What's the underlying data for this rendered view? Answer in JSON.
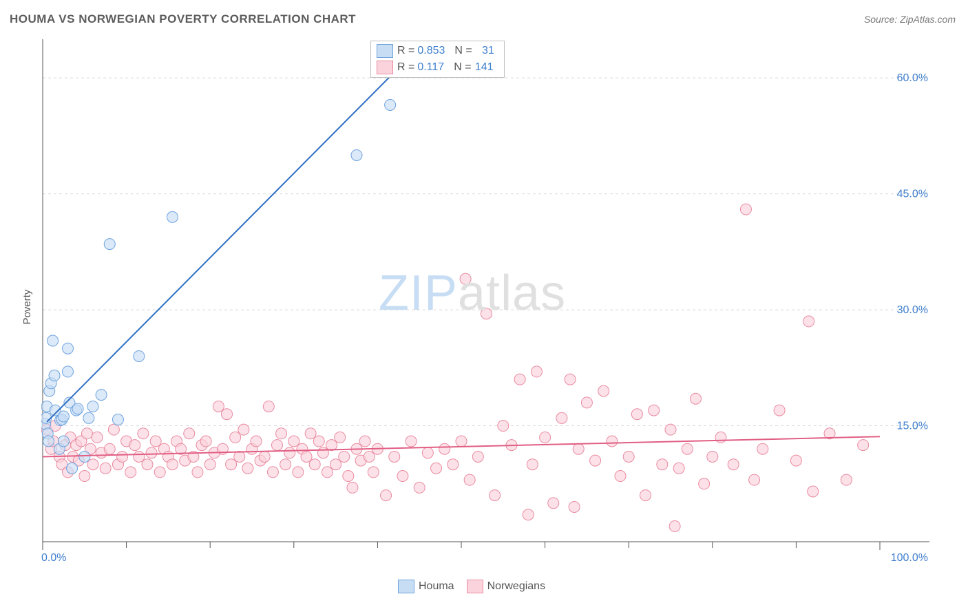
{
  "header": {
    "title": "HOUMA VS NORWEGIAN POVERTY CORRELATION CHART",
    "source": "Source: ZipAtlas.com"
  },
  "y_axis": {
    "label": "Poverty"
  },
  "watermark": {
    "zip": "ZIP",
    "atlas": "atlas"
  },
  "chart": {
    "type": "scatter",
    "xlim": [
      0,
      100
    ],
    "ylim": [
      0,
      65
    ],
    "x_ticks_major": [
      0,
      100
    ],
    "x_ticks_minor": [
      10,
      20,
      30,
      40,
      50,
      60,
      70,
      80,
      90
    ],
    "x_tick_labels": {
      "0": "0.0%",
      "100": "100.0%"
    },
    "y_gridlines": [
      15,
      30,
      45,
      60
    ],
    "y_tick_labels": {
      "15": "15.0%",
      "30": "30.0%",
      "45": "45.0%",
      "60": "60.0%"
    },
    "background_color": "#ffffff",
    "grid_color": "#d8d8d8",
    "axis_color": "#555555",
    "marker_radius": 8,
    "series": [
      {
        "name": "Houma",
        "fill": "#c7ddf4",
        "stroke": "#6ea3de",
        "fill_opacity": 0.65,
        "trend": {
          "x1": 0.5,
          "y1": 15.5,
          "x2": 45,
          "y2": 64,
          "color": "#2f6fc3",
          "width": 2
        },
        "points": [
          [
            0.3,
            15.2
          ],
          [
            0.4,
            16.0
          ],
          [
            0.5,
            17.5
          ],
          [
            0.6,
            14.0
          ],
          [
            0.7,
            13.0
          ],
          [
            0.8,
            19.5
          ],
          [
            1.0,
            20.5
          ],
          [
            1.2,
            26.0
          ],
          [
            1.4,
            21.5
          ],
          [
            1.5,
            17.0
          ],
          [
            2.0,
            12.0
          ],
          [
            2.1,
            15.7
          ],
          [
            2.3,
            15.8
          ],
          [
            2.5,
            16.2
          ],
          [
            3.0,
            22.0
          ],
          [
            3.2,
            18.0
          ],
          [
            3.5,
            9.5
          ],
          [
            4.0,
            17.0
          ],
          [
            4.2,
            17.2
          ],
          [
            5.0,
            11.0
          ],
          [
            5.5,
            16.0
          ],
          [
            6.0,
            17.5
          ],
          [
            7.0,
            19.0
          ],
          [
            8.0,
            38.5
          ],
          [
            9.0,
            15.8
          ],
          [
            11.5,
            24.0
          ],
          [
            15.5,
            42.0
          ],
          [
            37.5,
            50.0
          ],
          [
            41.5,
            56.5
          ],
          [
            2.5,
            13.0
          ],
          [
            3.0,
            25.0
          ]
        ]
      },
      {
        "name": "Norwegians",
        "fill": "#fad3dc",
        "stroke": "#e98aa0",
        "fill_opacity": 0.65,
        "trend": {
          "x1": 0,
          "y1": 11.0,
          "x2": 100,
          "y2": 13.6,
          "color": "#e15e84",
          "width": 2
        },
        "points": [
          [
            0.5,
            14.5
          ],
          [
            1.0,
            12.0
          ],
          [
            1.3,
            13.0
          ],
          [
            1.5,
            15.0
          ],
          [
            2.0,
            11.0
          ],
          [
            2.3,
            10.0
          ],
          [
            2.7,
            12.5
          ],
          [
            3.0,
            9.0
          ],
          [
            3.3,
            13.5
          ],
          [
            3.6,
            11.0
          ],
          [
            4.0,
            12.5
          ],
          [
            4.3,
            10.5
          ],
          [
            4.6,
            13.0
          ],
          [
            5.0,
            8.5
          ],
          [
            5.3,
            14.0
          ],
          [
            5.7,
            12.0
          ],
          [
            6.0,
            10.0
          ],
          [
            6.5,
            13.5
          ],
          [
            7.0,
            11.5
          ],
          [
            7.5,
            9.5
          ],
          [
            8.0,
            12.0
          ],
          [
            8.5,
            14.5
          ],
          [
            9.0,
            10.0
          ],
          [
            9.5,
            11.0
          ],
          [
            10.0,
            13.0
          ],
          [
            10.5,
            9.0
          ],
          [
            11.0,
            12.5
          ],
          [
            11.5,
            11.0
          ],
          [
            12.0,
            14.0
          ],
          [
            12.5,
            10.0
          ],
          [
            13.0,
            11.5
          ],
          [
            13.5,
            13.0
          ],
          [
            14.0,
            9.0
          ],
          [
            14.5,
            12.0
          ],
          [
            15.0,
            11.0
          ],
          [
            15.5,
            10.0
          ],
          [
            16.0,
            13.0
          ],
          [
            16.5,
            12.0
          ],
          [
            17.0,
            10.5
          ],
          [
            17.5,
            14.0
          ],
          [
            18.0,
            11.0
          ],
          [
            18.5,
            9.0
          ],
          [
            19.0,
            12.5
          ],
          [
            19.5,
            13.0
          ],
          [
            20.0,
            10.0
          ],
          [
            20.5,
            11.5
          ],
          [
            21.0,
            17.5
          ],
          [
            21.5,
            12.0
          ],
          [
            22.0,
            16.5
          ],
          [
            22.5,
            10.0
          ],
          [
            23.0,
            13.5
          ],
          [
            23.5,
            11.0
          ],
          [
            24.0,
            14.5
          ],
          [
            24.5,
            9.5
          ],
          [
            25.0,
            12.0
          ],
          [
            25.5,
            13.0
          ],
          [
            26.0,
            10.5
          ],
          [
            26.5,
            11.0
          ],
          [
            27.0,
            17.5
          ],
          [
            27.5,
            9.0
          ],
          [
            28.0,
            12.5
          ],
          [
            28.5,
            14.0
          ],
          [
            29.0,
            10.0
          ],
          [
            29.5,
            11.5
          ],
          [
            30.0,
            13.0
          ],
          [
            30.5,
            9.0
          ],
          [
            31.0,
            12.0
          ],
          [
            31.5,
            11.0
          ],
          [
            32.0,
            14.0
          ],
          [
            32.5,
            10.0
          ],
          [
            33.0,
            13.0
          ],
          [
            33.5,
            11.5
          ],
          [
            34.0,
            9.0
          ],
          [
            34.5,
            12.5
          ],
          [
            35.0,
            10.0
          ],
          [
            35.5,
            13.5
          ],
          [
            36.0,
            11.0
          ],
          [
            36.5,
            8.5
          ],
          [
            37.0,
            7.0
          ],
          [
            37.5,
            12.0
          ],
          [
            38.0,
            10.5
          ],
          [
            38.5,
            13.0
          ],
          [
            39.0,
            11.0
          ],
          [
            39.5,
            9.0
          ],
          [
            40.0,
            12.0
          ],
          [
            41.0,
            6.0
          ],
          [
            42.0,
            11.0
          ],
          [
            43.0,
            8.5
          ],
          [
            44.0,
            13.0
          ],
          [
            45.0,
            7.0
          ],
          [
            46.0,
            11.5
          ],
          [
            47.0,
            9.5
          ],
          [
            48.0,
            12.0
          ],
          [
            49.0,
            10.0
          ],
          [
            50.0,
            13.0
          ],
          [
            50.5,
            34.0
          ],
          [
            51.0,
            8.0
          ],
          [
            52.0,
            11.0
          ],
          [
            53.0,
            29.5
          ],
          [
            54.0,
            6.0
          ],
          [
            55.0,
            15.0
          ],
          [
            56.0,
            12.5
          ],
          [
            57.0,
            21.0
          ],
          [
            58.0,
            3.5
          ],
          [
            58.5,
            10.0
          ],
          [
            59.0,
            22.0
          ],
          [
            60.0,
            13.5
          ],
          [
            61.0,
            5.0
          ],
          [
            62.0,
            16.0
          ],
          [
            63.0,
            21.0
          ],
          [
            63.5,
            4.5
          ],
          [
            64.0,
            12.0
          ],
          [
            65.0,
            18.0
          ],
          [
            66.0,
            10.5
          ],
          [
            67.0,
            19.5
          ],
          [
            68.0,
            13.0
          ],
          [
            69.0,
            8.5
          ],
          [
            70.0,
            11.0
          ],
          [
            71.0,
            16.5
          ],
          [
            72.0,
            6.0
          ],
          [
            73.0,
            17.0
          ],
          [
            74.0,
            10.0
          ],
          [
            75.0,
            14.5
          ],
          [
            75.5,
            2.0
          ],
          [
            76.0,
            9.5
          ],
          [
            77.0,
            12.0
          ],
          [
            78.0,
            18.5
          ],
          [
            79.0,
            7.5
          ],
          [
            80.0,
            11.0
          ],
          [
            81.0,
            13.5
          ],
          [
            82.5,
            10.0
          ],
          [
            84.0,
            43.0
          ],
          [
            85.0,
            8.0
          ],
          [
            86.0,
            12.0
          ],
          [
            88.0,
            17.0
          ],
          [
            90.0,
            10.5
          ],
          [
            91.5,
            28.5
          ],
          [
            92.0,
            6.5
          ],
          [
            94.0,
            14.0
          ],
          [
            96.0,
            8.0
          ],
          [
            98.0,
            12.5
          ]
        ]
      }
    ]
  },
  "stats_legend": {
    "houma": {
      "r_label": "R = ",
      "r": "0.853",
      "n_label": "N = ",
      "n": "31"
    },
    "norwegians": {
      "r_label": "R = ",
      "r": "0.117",
      "n_label": "N = ",
      "n": "141"
    }
  },
  "bottom_legend": {
    "houma": "Houma",
    "norwegians": "Norwegians"
  }
}
